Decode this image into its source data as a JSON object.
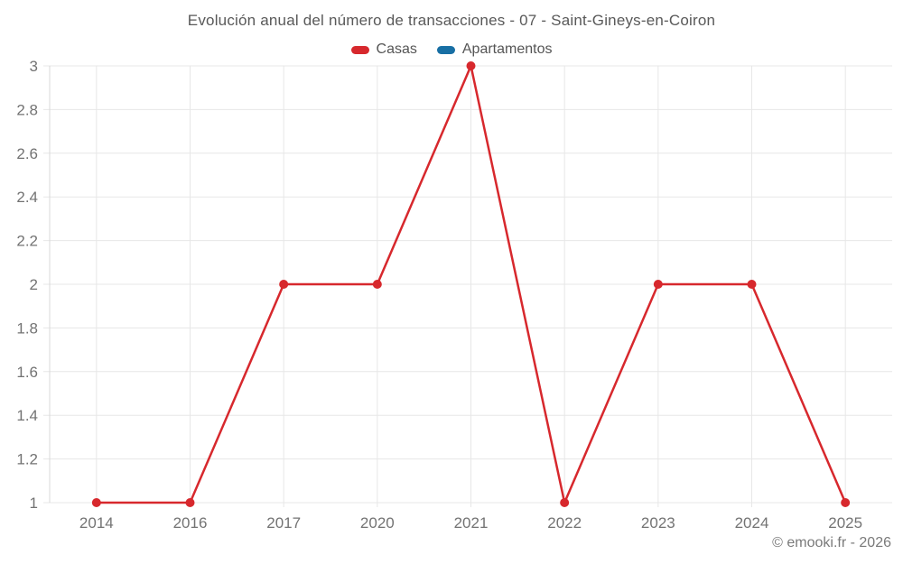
{
  "footer": {
    "credit": "© emooki.fr - 2026"
  },
  "chart_data": {
    "type": "line",
    "title": "Evolución anual del número de transacciones - 07 - Saint-Gineys-en-Coiron",
    "x": [
      "2014",
      "2016",
      "2017",
      "2020",
      "2021",
      "2022",
      "2023",
      "2024",
      "2025"
    ],
    "series": [
      {
        "name": "Casas",
        "color": "#d7282d",
        "values": [
          1,
          1,
          2,
          2,
          3,
          1,
          2,
          2,
          1
        ]
      },
      {
        "name": "Apartamentos",
        "color": "#186fa4",
        "values": []
      }
    ],
    "xlabel": "",
    "ylabel": "",
    "ylim": [
      1,
      3
    ],
    "yticks": [
      1,
      1.2,
      1.4,
      1.6,
      1.8,
      2,
      2.2,
      2.4,
      2.6,
      2.8,
      3
    ],
    "grid": true,
    "legend_position": "top",
    "marker_radius": 5,
    "line_width": 2.5,
    "colors": {
      "grid": "#e7e7e7",
      "axis": "#d9d9d9",
      "tick_label": "#737373"
    }
  }
}
